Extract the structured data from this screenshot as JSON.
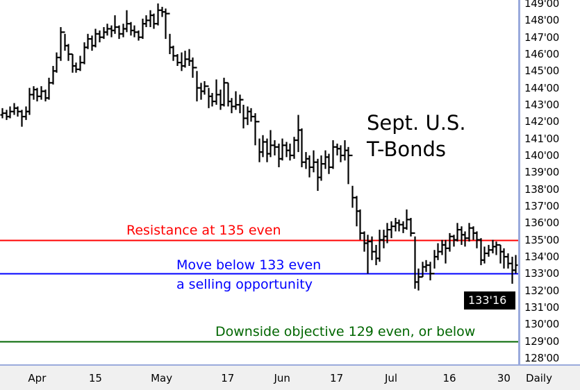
{
  "chart_data": {
    "type": "ohlc",
    "title": [
      "Sept. U.S.",
      "T-Bonds"
    ],
    "period_label": "Daily",
    "last_price_label": "133'16",
    "ylim": [
      128,
      149
    ],
    "y_ticks": [
      {
        "value": 149,
        "label": "149'00"
      },
      {
        "value": 148,
        "label": "148'00"
      },
      {
        "value": 147,
        "label": "147'00"
      },
      {
        "value": 146,
        "label": "146'00"
      },
      {
        "value": 145,
        "label": "145'00"
      },
      {
        "value": 144,
        "label": "144'00"
      },
      {
        "value": 143,
        "label": "143'00"
      },
      {
        "value": 142,
        "label": "142'00"
      },
      {
        "value": 141,
        "label": "141'00"
      },
      {
        "value": 140,
        "label": "140'00"
      },
      {
        "value": 139,
        "label": "139'00"
      },
      {
        "value": 138,
        "label": "138'00"
      },
      {
        "value": 137,
        "label": "137'00"
      },
      {
        "value": 136,
        "label": "136'00"
      },
      {
        "value": 135,
        "label": "135'00"
      },
      {
        "value": 134,
        "label": "134'00"
      },
      {
        "value": 133,
        "label": "133'00"
      },
      {
        "value": 132,
        "label": "132'00"
      },
      {
        "value": 131,
        "label": "131'00"
      },
      {
        "value": 130,
        "label": "130'00"
      },
      {
        "value": 129,
        "label": "129'00"
      },
      {
        "value": 128,
        "label": "128'00"
      }
    ],
    "x_ticks": [
      {
        "bar": 9,
        "label": "Apr"
      },
      {
        "bar": 24,
        "label": "15"
      },
      {
        "bar": 41,
        "label": "May"
      },
      {
        "bar": 58,
        "label": "17"
      },
      {
        "bar": 72,
        "label": "Jun"
      },
      {
        "bar": 86,
        "label": "17"
      },
      {
        "bar": 100,
        "label": "Jul"
      },
      {
        "bar": 115,
        "label": "16"
      },
      {
        "bar": 129,
        "label": "30"
      }
    ],
    "hlines": [
      {
        "value": 135,
        "color": "#ff0000",
        "label": "Resistance at 135 even"
      },
      {
        "value": 133,
        "color": "#0000ff",
        "label": "Move below 133 even",
        "label2": "a selling opportunity"
      },
      {
        "value": 129,
        "color": "#006600",
        "label": "Downside objective 129 even, or below"
      }
    ],
    "first_open": 142.4,
    "close": [
      142.5,
      142.3,
      142.6,
      142.8,
      142.6,
      142.3,
      142.6,
      143.6,
      143.9,
      143.5,
      143.8,
      143.4,
      144.3,
      145.0,
      145.8,
      147.3,
      146.5,
      146.0,
      145.3,
      145.1,
      145.5,
      146.4,
      146.9,
      146.5,
      147.2,
      147.0,
      147.3,
      147.5,
      147.4,
      147.6,
      147.2,
      147.5,
      147.8,
      147.4,
      147.3,
      147.0,
      147.8,
      148.0,
      148.3,
      147.8,
      148.6,
      148.5,
      148.4,
      146.4,
      145.9,
      145.5,
      145.3,
      145.7,
      145.6,
      145.2,
      144.0,
      143.8,
      144.1,
      143.5,
      143.2,
      143.6,
      143.0,
      144.3,
      143.2,
      142.9,
      143.0,
      143.3,
      142.2,
      142.6,
      142.3,
      142.0,
      140.2,
      140.8,
      140.1,
      140.6,
      140.5,
      139.8,
      140.6,
      140.3,
      140.0,
      140.9,
      141.5,
      139.6,
      139.8,
      139.3,
      139.6,
      138.7,
      139.5,
      139.9,
      139.3,
      140.5,
      140.4,
      140.0,
      140.3,
      140.0,
      137.5,
      136.7,
      135.4,
      134.8,
      134.9,
      134.3,
      133.9,
      135.0,
      135.2,
      135.6,
      135.8,
      136.0,
      135.9,
      135.7,
      136.2,
      135.4,
      132.5,
      132.8,
      133.4,
      133.5,
      133.0,
      134.0,
      134.3,
      134.7,
      134.5,
      135.2,
      135.0,
      135.6,
      135.3,
      135.1,
      135.7,
      135.4,
      135.0,
      133.8,
      134.2,
      134.4,
      134.6,
      134.7,
      134.3,
      134.0,
      133.6,
      133.2,
      133.5
    ],
    "high": [
      142.8,
      142.7,
      142.9,
      143.1,
      142.9,
      142.7,
      142.9,
      144.0,
      144.1,
      144.0,
      144.1,
      143.9,
      144.6,
      145.3,
      146.1,
      147.6,
      147.2,
      146.6,
      146.0,
      145.5,
      145.9,
      146.7,
      147.2,
      147.1,
      147.5,
      147.4,
      147.6,
      147.8,
      147.7,
      148.3,
      147.7,
      147.8,
      148.6,
      147.9,
      147.7,
      147.4,
      148.1,
      148.3,
      148.6,
      148.4,
      149.0,
      148.8,
      148.7,
      147.2,
      146.5,
      146.0,
      146.1,
      146.2,
      146.3,
      145.8,
      145.0,
      144.3,
      144.4,
      144.0,
      143.7,
      144.5,
      143.9,
      144.6,
      144.3,
      143.4,
      143.8,
      143.6,
      143.0,
      142.9,
      142.8,
      142.5,
      141.0,
      141.2,
      141.0,
      141.5,
      140.9,
      140.7,
      141.0,
      140.8,
      140.7,
      141.1,
      142.4,
      141.6,
      140.2,
      140.0,
      140.3,
      139.8,
      140.0,
      140.3,
      140.1,
      140.9,
      140.7,
      140.6,
      140.9,
      140.5,
      138.2,
      137.6,
      136.8,
      135.5,
      135.3,
      135.2,
      134.7,
      135.6,
      135.6,
      136.0,
      136.1,
      136.3,
      136.2,
      136.1,
      136.8,
      136.3,
      135.2,
      133.3,
      133.7,
      133.8,
      133.7,
      134.4,
      134.8,
      135.0,
      135.0,
      135.4,
      135.3,
      136.0,
      135.8,
      135.5,
      136.0,
      135.8,
      135.5,
      135.1,
      134.6,
      134.7,
      135.0,
      134.9,
      134.7,
      134.5,
      134.2,
      134.0,
      134.1
    ],
    "low": [
      142.2,
      142.1,
      142.2,
      142.4,
      142.3,
      141.7,
      142.1,
      142.4,
      143.3,
      143.2,
      143.3,
      143.2,
      143.3,
      144.2,
      144.9,
      145.6,
      146.2,
      145.6,
      144.9,
      144.9,
      145.0,
      145.4,
      146.3,
      146.2,
      146.4,
      146.7,
      146.9,
      147.1,
      147.0,
      147.2,
      146.9,
      147.0,
      147.3,
      147.1,
      147.0,
      146.8,
      146.9,
      147.6,
      147.6,
      147.5,
      147.7,
      148.2,
      146.9,
      146.0,
      145.6,
      145.3,
      145.0,
      145.2,
      145.3,
      144.6,
      143.2,
      143.3,
      143.6,
      142.8,
      142.9,
      143.0,
      142.7,
      142.9,
      142.9,
      142.5,
      142.7,
      142.5,
      141.6,
      141.8,
      142.0,
      140.6,
      139.6,
      139.9,
      139.6,
      139.9,
      140.0,
      139.3,
      139.7,
      139.9,
      139.7,
      139.8,
      140.2,
      139.3,
      139.2,
      138.7,
      139.0,
      137.9,
      138.5,
      139.2,
      138.9,
      139.2,
      140.0,
      139.6,
      139.7,
      138.3,
      136.9,
      135.8,
      135.0,
      134.3,
      133.0,
      133.8,
      133.5,
      133.7,
      134.5,
      134.8,
      135.1,
      135.5,
      135.5,
      135.4,
      135.6,
      135.2,
      132.1,
      132.0,
      132.8,
      133.1,
      132.6,
      133.3,
      133.8,
      134.1,
      133.6,
      134.3,
      134.6,
      134.9,
      134.7,
      134.6,
      134.9,
      135.0,
      134.5,
      133.5,
      133.6,
      134.0,
      134.2,
      134.1,
      133.6,
      133.3,
      133.3,
      132.4,
      133.0
    ]
  }
}
